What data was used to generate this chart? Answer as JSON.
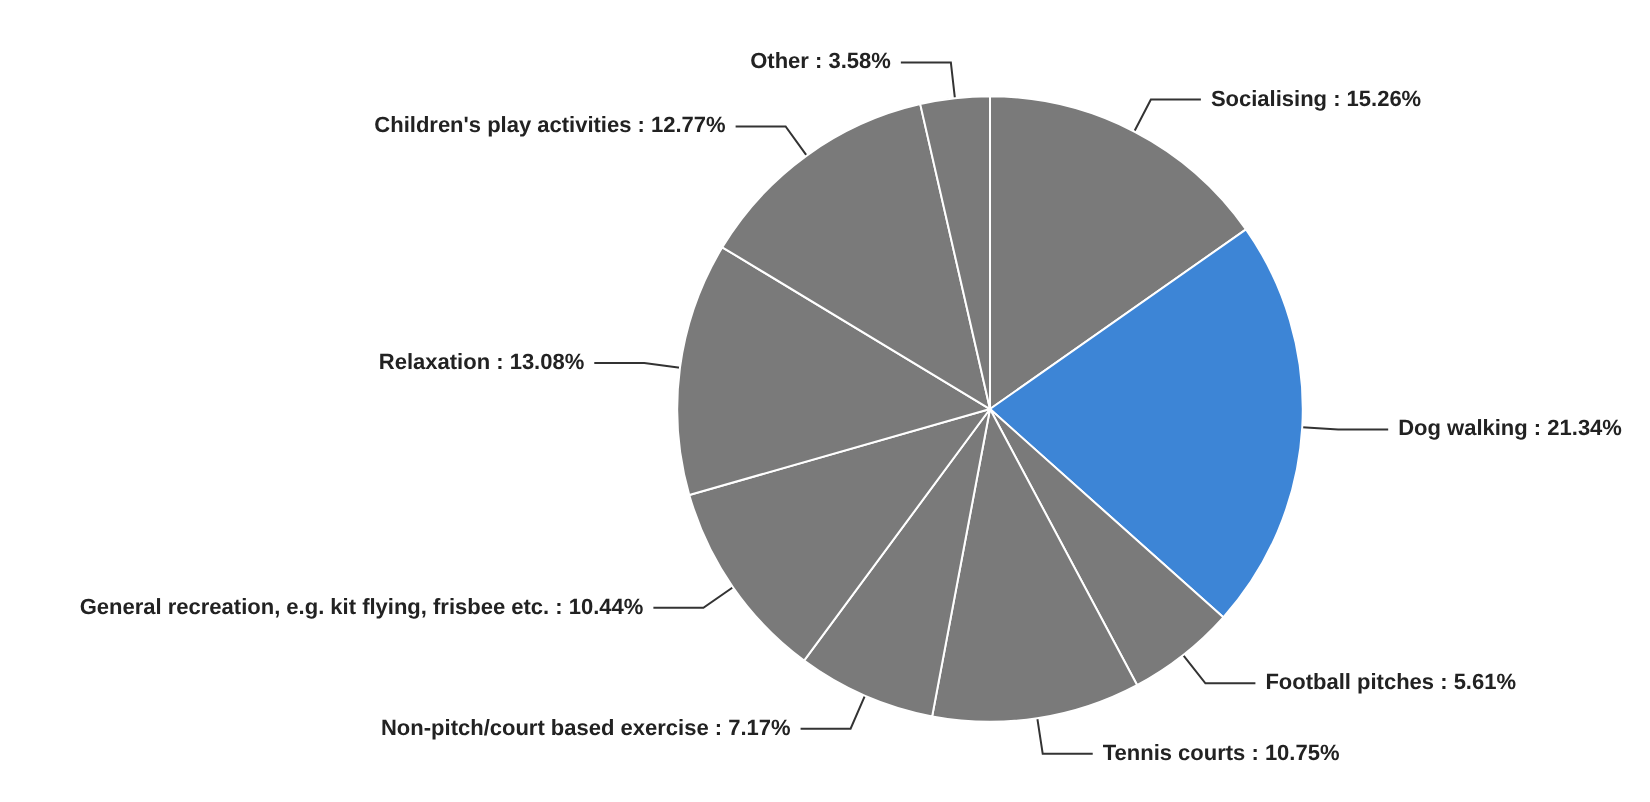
{
  "chart_data": {
    "type": "pie",
    "categories": [
      "Socialising",
      "Dog walking",
      "Football pitches",
      "Tennis courts",
      "Non-pitch/court based exercise",
      "General recreation, e.g. kit flying, frisbee etc.",
      "Relaxation",
      "Children's play activities",
      "Other"
    ],
    "values": [
      15.26,
      21.34,
      5.61,
      10.75,
      7.17,
      10.44,
      13.08,
      12.77,
      3.58
    ],
    "value_labels": [
      "15.26%",
      "21.34%",
      "5.61%",
      "10.75%",
      "7.17%",
      "10.44%",
      "13.08%",
      "12.77%",
      "3.58%"
    ],
    "colors": [
      "#7a7a7a",
      "#3d85d6",
      "#7a7a7a",
      "#7a7a7a",
      "#7a7a7a",
      "#7a7a7a",
      "#7a7a7a",
      "#7a7a7a",
      "#7a7a7a"
    ]
  }
}
